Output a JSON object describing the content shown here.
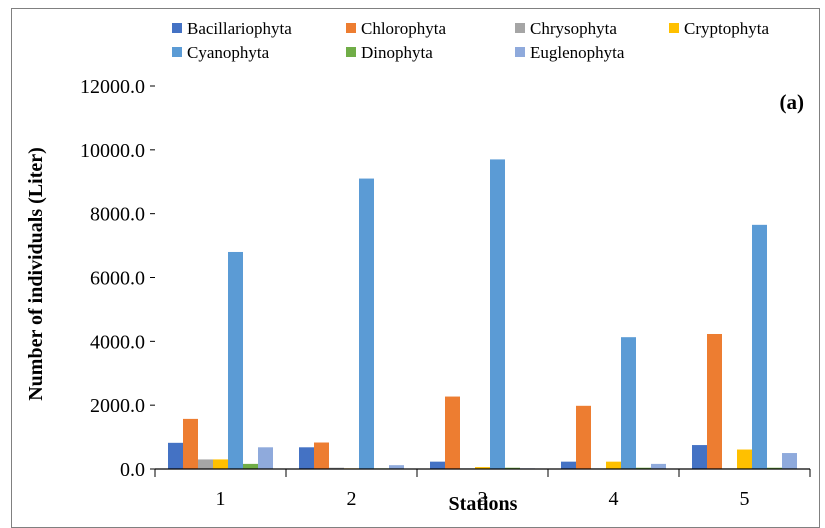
{
  "chart_data": {
    "type": "bar",
    "panel_label": "(a)",
    "xlabel": "Stations",
    "ylabel": "Number of individuals (Liter)",
    "categories": [
      "1",
      "2",
      "3",
      "4",
      "5"
    ],
    "ylim": [
      0,
      12000
    ],
    "yticks": [
      "0.0",
      "2000.0",
      "4000.0",
      "6000.0",
      "8000.0",
      "10000.0",
      "12000.0"
    ],
    "grid": false,
    "legend_position": "top",
    "series": [
      {
        "name": "Bacillariophyta",
        "color": "#4472C4",
        "values": [
          820,
          680,
          230,
          230,
          750
        ]
      },
      {
        "name": "Chlorophyta",
        "color": "#ED7D31",
        "values": [
          1570,
          830,
          2270,
          1980,
          4230
        ]
      },
      {
        "name": "Chrysophyta",
        "color": "#A5A5A5",
        "values": [
          300,
          40,
          20,
          20,
          20
        ]
      },
      {
        "name": "Cryptophyta",
        "color": "#FFC000",
        "values": [
          300,
          20,
          60,
          230,
          610
        ]
      },
      {
        "name": "Cyanophyta",
        "color": "#5B9BD5",
        "values": [
          6800,
          9100,
          9700,
          4130,
          7650
        ]
      },
      {
        "name": "Dinophyta",
        "color": "#70AD47",
        "values": [
          160,
          20,
          40,
          40,
          40
        ]
      },
      {
        "name": "Euglenophyta",
        "color": "#8FAADC",
        "values": [
          680,
          120,
          20,
          160,
          500
        ]
      }
    ]
  }
}
